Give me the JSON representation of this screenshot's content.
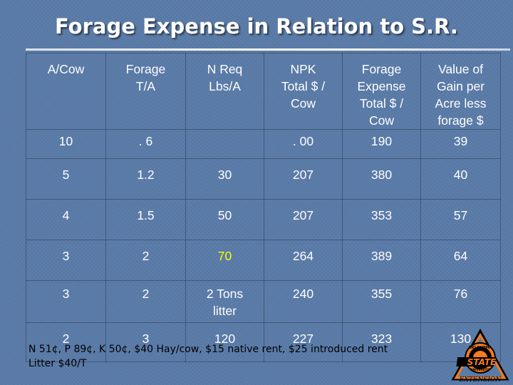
{
  "title": "Forage Expense in Relation to S.R.",
  "table": {
    "headers": [
      [
        "A/Cow"
      ],
      [
        "Forage",
        "T/A"
      ],
      [
        "N Req",
        "Lbs/A"
      ],
      [
        "NPK",
        "Total $ /",
        "Cow"
      ],
      [
        "Forage",
        "Expense",
        "Total $ /",
        "Cow"
      ],
      [
        "Value of",
        "Gain per",
        "Acre less",
        "forage $"
      ]
    ],
    "rows": [
      [
        [
          "10"
        ],
        [
          ". 6"
        ],
        [
          ""
        ],
        [
          ". 00"
        ],
        [
          "190"
        ],
        [
          "39"
        ]
      ],
      [
        [
          "5"
        ],
        [
          "1.2"
        ],
        [
          "30"
        ],
        [
          "207"
        ],
        [
          "380"
        ],
        [
          "40"
        ]
      ],
      [
        [
          "4"
        ],
        [
          "1.5"
        ],
        [
          "50"
        ],
        [
          "207"
        ],
        [
          "353"
        ],
        [
          "57"
        ]
      ],
      [
        [
          "3"
        ],
        [
          "2"
        ],
        [
          "70"
        ],
        [
          "264"
        ],
        [
          "389"
        ],
        [
          "64"
        ]
      ],
      [
        [
          "3"
        ],
        [
          "2"
        ],
        [
          "2 Tons",
          "litter"
        ],
        [
          "240"
        ],
        [
          "355"
        ],
        [
          "76"
        ]
      ],
      [
        [
          "2"
        ],
        [
          "3"
        ],
        [
          "120"
        ],
        [
          "227"
        ],
        [
          "323"
        ],
        [
          "130"
        ]
      ]
    ],
    "highlight_color": "#ffff00"
  },
  "footnote": {
    "line1": "N 51¢, P 89¢, K 50¢, $40 Hay/cow, $15 native rent, $25 introduced rent",
    "line2": "Litter $40/T"
  },
  "logo": {
    "icon": "osu-extension-logo",
    "text_top": "OKLAHOMA",
    "text_main": "STATE",
    "text_sub": "UNIVERSITY",
    "text_bottom": "EXTENSION",
    "colors": {
      "orange": "#f47b20",
      "black": "#000000"
    }
  }
}
